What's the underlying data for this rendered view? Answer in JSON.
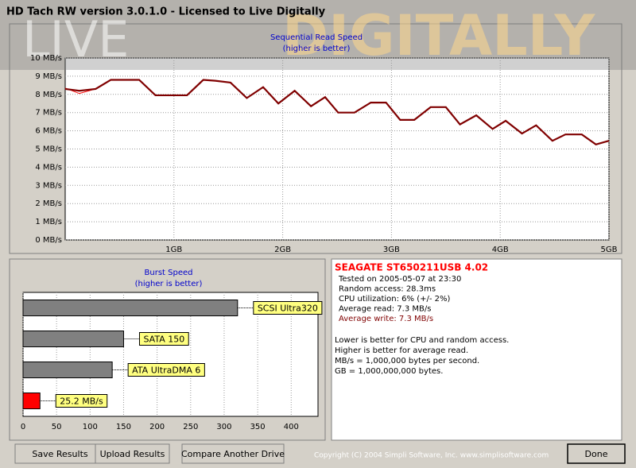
{
  "window": {
    "title": "HD Tach RW version 3.0.1.0 - Licensed to Live Digitally",
    "watermark": [
      "LIVE",
      "DIGITALLY"
    ]
  },
  "read_chart": {
    "type": "line",
    "title": "Sequential Read Speed",
    "subtitle": "(higher is better)",
    "x": [
      0,
      0.13,
      0.28,
      0.42,
      0.68,
      0.83,
      1.12,
      1.27,
      1.38,
      1.52,
      1.67,
      1.82,
      1.96,
      2.11,
      2.26,
      2.39,
      2.51,
      2.66,
      2.81,
      2.95,
      3.08,
      3.21,
      3.36,
      3.5,
      3.63,
      3.78,
      3.93,
      4.05,
      4.2,
      4.33,
      4.48,
      4.6,
      4.75,
      4.88,
      5.0
    ],
    "series": [
      {
        "color": "#ff0000",
        "values": [
          8.35,
          8.05,
          8.3,
          8.8,
          8.8,
          7.95,
          7.95,
          8.8,
          8.75,
          8.65,
          7.8,
          8.4,
          7.5,
          8.2,
          7.35,
          7.85,
          7.0,
          7.0,
          7.55,
          7.55,
          6.6,
          6.6,
          7.3,
          7.3,
          6.35,
          6.85,
          6.1,
          6.55,
          5.85,
          6.3,
          5.45,
          5.8,
          5.8,
          5.25,
          5.45
        ]
      },
      {
        "color": "#800000",
        "values": [
          8.3,
          8.2,
          8.3,
          8.8,
          8.8,
          7.95,
          7.95,
          8.8,
          8.75,
          8.65,
          7.8,
          8.4,
          7.5,
          8.2,
          7.35,
          7.85,
          7.0,
          7.0,
          7.55,
          7.55,
          6.6,
          6.6,
          7.3,
          7.3,
          6.35,
          6.85,
          6.1,
          6.55,
          5.85,
          6.3,
          5.45,
          5.8,
          5.8,
          5.25,
          5.45
        ]
      }
    ],
    "xlim": [
      0,
      5
    ],
    "xticks": [
      {
        "value": 1,
        "label": "1GB"
      },
      {
        "value": 2,
        "label": "2GB"
      },
      {
        "value": 3,
        "label": "3GB"
      },
      {
        "value": 4,
        "label": "4GB"
      },
      {
        "value": 5,
        "label": "5GB"
      }
    ],
    "ylim": [
      0,
      10
    ],
    "yticks": [
      {
        "value": 0,
        "label": "0 MB/s"
      },
      {
        "value": 1,
        "label": "1 MB/s"
      },
      {
        "value": 2,
        "label": "2 MB/s"
      },
      {
        "value": 3,
        "label": "3 MB/s"
      },
      {
        "value": 4,
        "label": "4 MB/s"
      },
      {
        "value": 5,
        "label": "5 MB/s"
      },
      {
        "value": 6,
        "label": "6 MB/s"
      },
      {
        "value": 7,
        "label": "7 MB/s"
      },
      {
        "value": 8,
        "label": "8 MB/s"
      },
      {
        "value": 9,
        "label": "9 MB/s"
      },
      {
        "value": 10,
        "label": "10 MB/s"
      }
    ],
    "grid": true
  },
  "burst_chart": {
    "type": "bar",
    "orientation": "horizontal",
    "title": "Burst Speed",
    "subtitle": "(higher is better)",
    "categories": [
      "SCSI Ultra320",
      "SATA 150",
      "ATA UltraDMA 6",
      null
    ],
    "values": [
      320,
      150,
      133,
      25.2
    ],
    "value_labels": [
      null,
      null,
      null,
      "25.2 MB/s"
    ],
    "colors": [
      "#808080",
      "#808080",
      "#808080",
      "#ff0000"
    ],
    "xlim": [
      0,
      440
    ],
    "xticks": [
      0,
      50,
      100,
      150,
      200,
      250,
      300,
      350,
      400
    ],
    "grid": true
  },
  "info": {
    "drive": "SEAGATE ST650211USB 4.02",
    "lines": [
      "Tested on 2005-05-07 at 23:30",
      "Random access: 28.3ms",
      "CPU utilization: 6% (+/- 2%)",
      "Average read: 7.3 MB/s",
      "Average write: 7.3 MB/s"
    ],
    "notes": [
      "Lower is better for CPU and random access.",
      "Higher is better for average read.",
      "MB/s = 1,000,000 bytes per second.",
      "GB = 1,000,000,000 bytes."
    ]
  },
  "buttons": [
    "Save Results",
    "Upload Results",
    "Compare Another Drive",
    "Done"
  ],
  "copyright": "Copyright (C) 2004 Simpli Software, Inc. www.simplisoftware.com"
}
